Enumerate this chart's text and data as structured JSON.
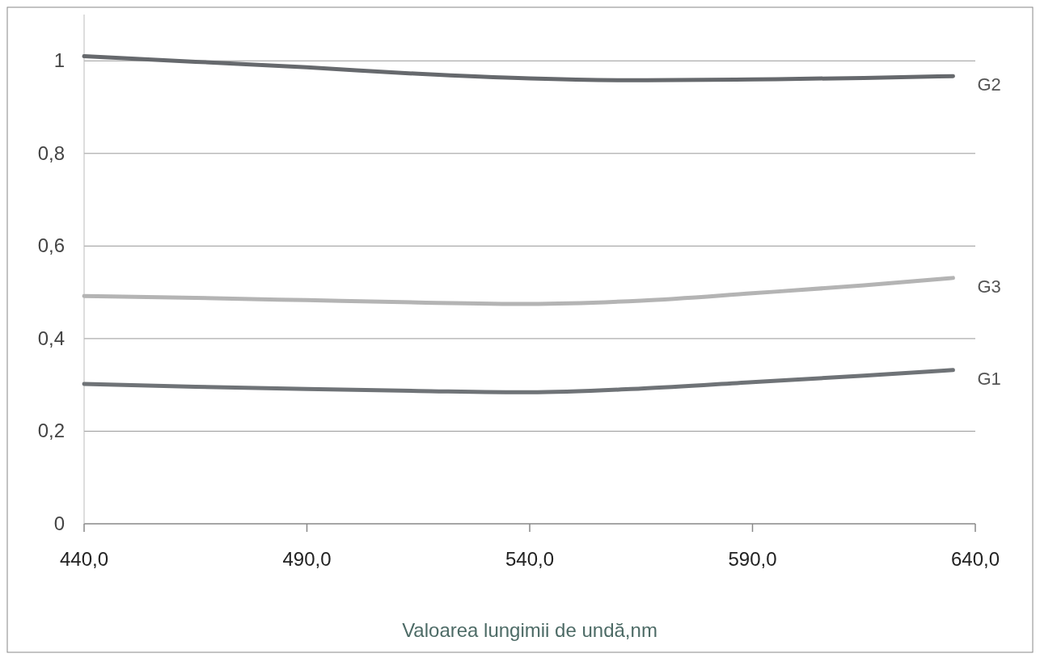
{
  "chart_data": {
    "type": "line",
    "xlabel": "Valoarea lungimii de undă,nm",
    "x": [
      440,
      465,
      490,
      515,
      540,
      565,
      590,
      615,
      635
    ],
    "series": [
      {
        "name": "G2",
        "color": "#66696d",
        "values": [
          1.01,
          0.998,
          0.986,
          0.972,
          0.962,
          0.958,
          0.96,
          0.963,
          0.967
        ]
      },
      {
        "name": "G3",
        "color": "#b4b4b4",
        "values": [
          0.492,
          0.488,
          0.483,
          0.478,
          0.475,
          0.482,
          0.498,
          0.515,
          0.531
        ]
      },
      {
        "name": "G1",
        "color": "#6f7377",
        "values": [
          0.302,
          0.296,
          0.291,
          0.287,
          0.284,
          0.292,
          0.306,
          0.32,
          0.332
        ]
      }
    ],
    "xlim": [
      440,
      640
    ],
    "xticks": [
      {
        "value": 440,
        "label": "440,0"
      },
      {
        "value": 490,
        "label": "490,0"
      },
      {
        "value": 540,
        "label": "540,0"
      },
      {
        "value": 590,
        "label": "590,0"
      },
      {
        "value": 640,
        "label": "640,0"
      }
    ],
    "ylim": [
      0,
      1.1
    ],
    "yticks": [
      0,
      {
        "value": 0.2,
        "label": "0,2"
      },
      {
        "value": 0.4,
        "label": "0,4"
      },
      {
        "value": 0.6,
        "label": "0,6"
      },
      {
        "value": 0.8,
        "label": "0,8"
      },
      1
    ],
    "grid": "y",
    "legend": false,
    "marker": "none",
    "line_style": "solid"
  }
}
